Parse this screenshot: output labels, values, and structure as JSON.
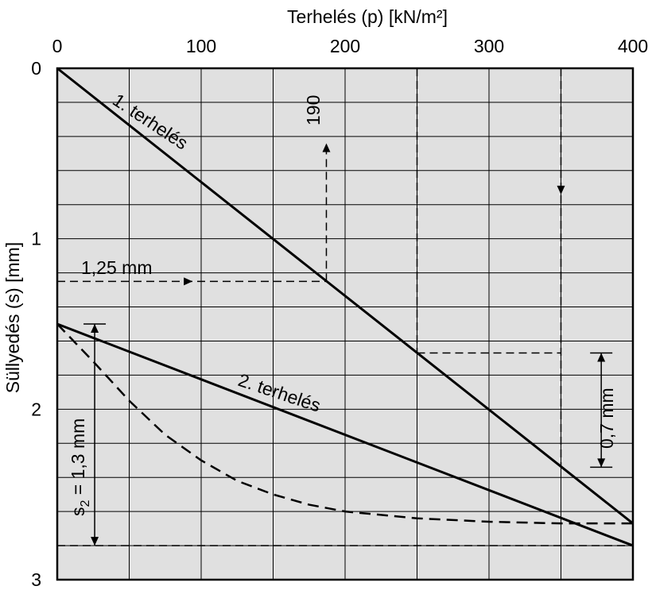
{
  "chart_data": {
    "type": "line",
    "title": "",
    "xlabel": "Terhelés (p) [kN/m²]",
    "ylabel": "Süllyedés (s) [mm]",
    "x_axis_position": "top",
    "xlim": [
      0,
      400
    ],
    "ylim": [
      0,
      3
    ],
    "y_inverted": true,
    "xticks": [
      0,
      100,
      200,
      300,
      400
    ],
    "yticks": [
      0,
      1,
      2,
      3
    ],
    "grid": true,
    "vertical_grid_x": [
      50,
      100,
      150,
      200,
      250,
      300,
      350
    ],
    "horizontal_grid_y": [
      0.2,
      0.4,
      0.6,
      0.8,
      1.0,
      1.2,
      1.4,
      1.6,
      1.8,
      2.0,
      2.2,
      2.4,
      2.6,
      2.8
    ],
    "plot_background": "#e0e0e0",
    "series": [
      {
        "name": "1. terhelés",
        "style": "solid",
        "x": [
          0,
          400
        ],
        "y": [
          0,
          2.67
        ]
      },
      {
        "name": "2. terhelés",
        "style": "solid",
        "x": [
          0,
          400
        ],
        "y": [
          1.5,
          2.8
        ]
      },
      {
        "name": "",
        "style": "dashed",
        "x": [
          0,
          25,
          50,
          75,
          100,
          125,
          150,
          175,
          200,
          250,
          300,
          350,
          400
        ],
        "y": [
          1.5,
          1.72,
          1.95,
          2.15,
          2.3,
          2.42,
          2.5,
          2.56,
          2.6,
          2.64,
          2.66,
          2.67,
          2.67
        ]
      }
    ],
    "annotations": {
      "label_190": "190",
      "label_125": "1,25 mm",
      "label_07": "0,7 mm",
      "label_s2_main": "s",
      "label_s2_sub": "2",
      "label_s2_rest": " = 1,3 mm"
    }
  }
}
